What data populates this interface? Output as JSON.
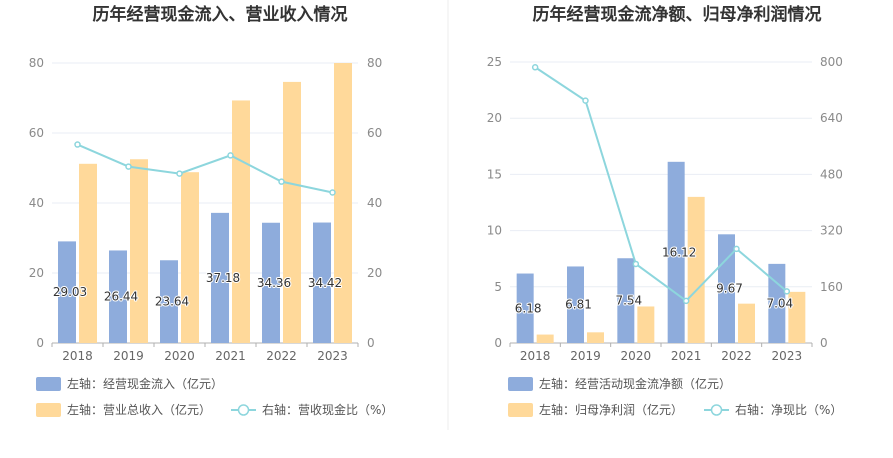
{
  "colors": {
    "bar_primary": "#8eacdc",
    "bar_secondary": "#ffd99a",
    "line": "#8dd6dd",
    "grid": "#e9edf4",
    "divider": "#eeeeee"
  },
  "chart_data": [
    {
      "type": "bar",
      "title": "历年经营现金流入、营业收入情况",
      "categories": [
        "2018",
        "2019",
        "2020",
        "2021",
        "2022",
        "2023"
      ],
      "left_axis": {
        "ylim": [
          0,
          80
        ],
        "ticks": [
          "0",
          "20",
          "40",
          "60",
          "80"
        ]
      },
      "right_axis": {
        "ylim": [
          0,
          80
        ],
        "ticks": [
          "0",
          "20",
          "40",
          "60",
          "80"
        ]
      },
      "series": [
        {
          "name": "左轴：经营现金流入（亿元）",
          "kind": "bar",
          "axis": "left",
          "color": "#8eacdc",
          "values": [
            29.03,
            26.44,
            23.64,
            37.18,
            34.36,
            34.42
          ],
          "labels": [
            "29.03",
            "26.44",
            "23.64",
            "37.18",
            "34.36",
            "34.42"
          ]
        },
        {
          "name": "左轴：营业总收入（亿元）",
          "kind": "bar",
          "axis": "left",
          "color": "#ffd99a",
          "values": [
            51.2,
            52.5,
            48.8,
            69.3,
            74.6,
            80.0
          ]
        },
        {
          "name": "右轴：营收现金比（%）",
          "kind": "line",
          "axis": "right",
          "color": "#8dd6dd",
          "values": [
            56.7,
            50.4,
            48.4,
            53.6,
            46.1,
            43.0
          ]
        }
      ],
      "legend": "bottom-left",
      "grid": true
    },
    {
      "type": "bar",
      "title": "历年经营现金流净额、归母净利润情况",
      "categories": [
        "2018",
        "2019",
        "2020",
        "2021",
        "2022",
        "2023"
      ],
      "left_axis": {
        "ylim": [
          0,
          25
        ],
        "ticks": [
          "0",
          "5",
          "10",
          "15",
          "20",
          "25"
        ]
      },
      "right_axis": {
        "ylim": [
          0,
          800
        ],
        "ticks": [
          "0",
          "160",
          "320",
          "480",
          "640",
          "800"
        ]
      },
      "series": [
        {
          "name": "左轴：经营活动现金流净额（亿元）",
          "kind": "bar",
          "axis": "left",
          "color": "#8eacdc",
          "values": [
            6.18,
            6.81,
            7.54,
            16.12,
            9.67,
            7.04
          ],
          "labels": [
            "6.18",
            "6.81",
            "7.54",
            "16.12",
            "9.67",
            "7.04"
          ]
        },
        {
          "name": "左轴：归母净利润（亿元）",
          "kind": "bar",
          "axis": "left",
          "color": "#ffd99a",
          "values": [
            0.75,
            0.95,
            3.25,
            13.0,
            3.5,
            4.55
          ]
        },
        {
          "name": "右轴：净现比（%）",
          "kind": "line",
          "axis": "right",
          "color": "#8dd6dd",
          "values": [
            785,
            690,
            225,
            120,
            268,
            147
          ]
        }
      ],
      "legend": "bottom-left",
      "grid": true
    }
  ]
}
